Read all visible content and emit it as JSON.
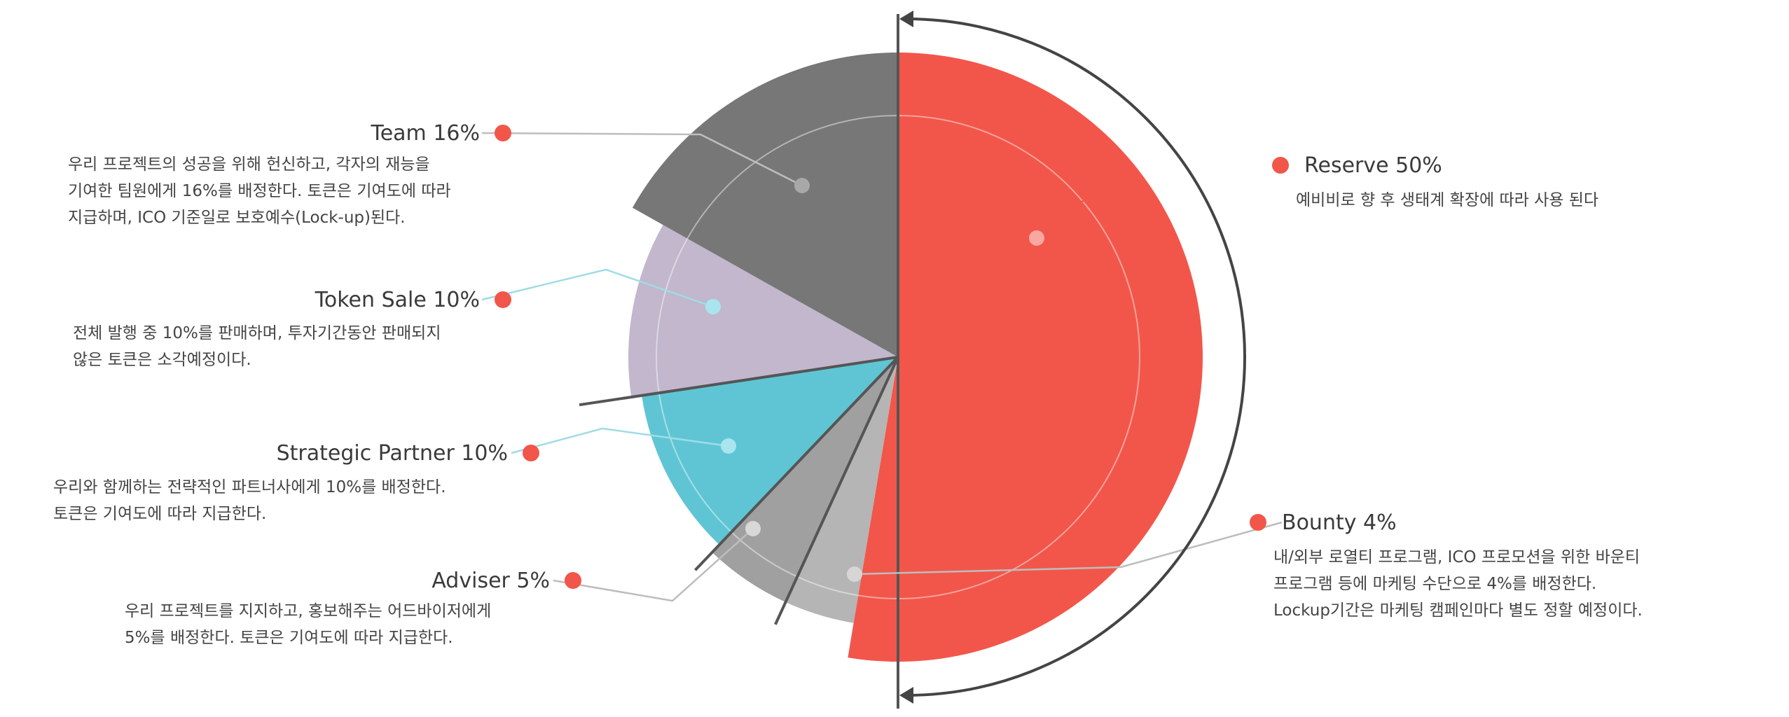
{
  "chart_data": {
    "type": "pie",
    "slices": [
      {
        "label": "Reserve",
        "value": 50,
        "color": "#F2564A",
        "title": "Reserve 50%",
        "description": [
          "예비비로 향 후 생태계 확장에 따라 사용 된다"
        ]
      },
      {
        "label": "Bounty",
        "value": 4,
        "color": "#B5B5B5",
        "title": "Bounty 4%",
        "description": [
          "내/외부 로열티 프로그램, ICO 프로모션을 위한 바운티",
          "프로그램 등에 마케팅 수단으로 4%를 배정한다.",
          "Lockup기간은 마케팅 캠페인마다 별도 정할 예정이다."
        ]
      },
      {
        "label": "Adviser",
        "value": 5,
        "color": "#A0A0A0",
        "title": "Adviser 5%",
        "description": [
          "우리 프로젝트를 지지하고, 홍보해주는 어드바이저에게",
          "5%를 배정한다. 토큰은 기여도에 따라 지급한다."
        ]
      },
      {
        "label": "Strategic Partner",
        "value": 10,
        "color": "#5FC5D4",
        "title": "Strategic Partner 10%",
        "description": [
          "우리와 함께하는 전략적인 파트너사에게 10%를 배정한다.",
          "토큰은 기여도에 따라 지급한다."
        ]
      },
      {
        "label": "Token Sale",
        "value": 10,
        "color": "#C2B7CD",
        "title": "Token Sale 10%",
        "description": [
          "전체 발행 중 10%를 판매하며, 투자기간동안 판매되지",
          "않은 토큰은 소각예정이다."
        ]
      },
      {
        "label": "Team",
        "value": 16,
        "color": "#777777",
        "title": "Team 16%",
        "description": [
          "우리 프로젝트의 성공을 위해 헌신하고, 각자의 재능을",
          "기여한 팀원에게 16%를 배정한다. 토큰은 기여도에 따라",
          "지급하며, ICO 기준일로 보호예수(Lock-up)된다."
        ]
      }
    ],
    "marker_color": "#F2564A"
  }
}
